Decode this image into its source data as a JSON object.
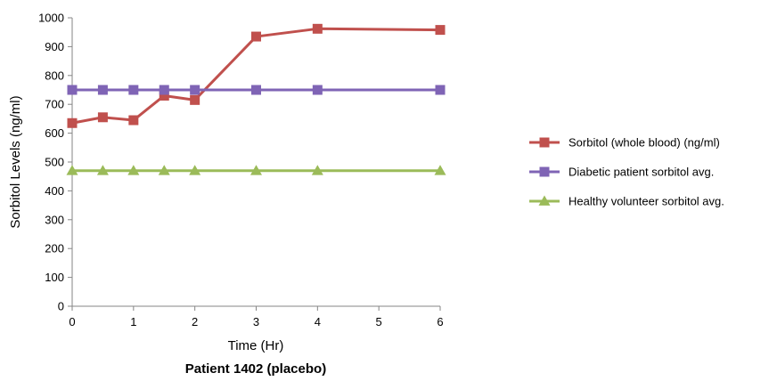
{
  "chart_data": {
    "type": "line",
    "title": "Patient 1402 (placebo)",
    "xlabel": "Time (Hr)",
    "ylabel": "Sorbitol Levels (ng/ml)",
    "xlim": [
      0,
      6
    ],
    "ylim": [
      0,
      1000
    ],
    "x_ticks": [
      0,
      1,
      2,
      3,
      4,
      5,
      6
    ],
    "y_ticks": [
      0,
      100,
      200,
      300,
      400,
      500,
      600,
      700,
      800,
      900,
      1000
    ],
    "grid": false,
    "legend_position": "right",
    "series": [
      {
        "name": "Sorbitol (whole blood) (ng/ml)",
        "color": "#c0504d",
        "marker": "square",
        "x": [
          0,
          0.5,
          1,
          1.5,
          2,
          3,
          4,
          6
        ],
        "y": [
          635,
          655,
          645,
          730,
          715,
          935,
          962,
          958
        ]
      },
      {
        "name": "Diabetic patient sorbitol avg.",
        "color": "#7f64b5",
        "marker": "square",
        "x": [
          0,
          0.5,
          1,
          1.5,
          2,
          3,
          4,
          6
        ],
        "y": [
          750,
          750,
          750,
          750,
          750,
          750,
          750,
          750
        ]
      },
      {
        "name": "Healthy volunteer sorbitol avg.",
        "color": "#9bbb59",
        "marker": "triangle",
        "x": [
          0,
          0.5,
          1,
          1.5,
          2,
          3,
          4,
          6
        ],
        "y": [
          470,
          470,
          470,
          470,
          470,
          470,
          470,
          470
        ]
      }
    ]
  }
}
